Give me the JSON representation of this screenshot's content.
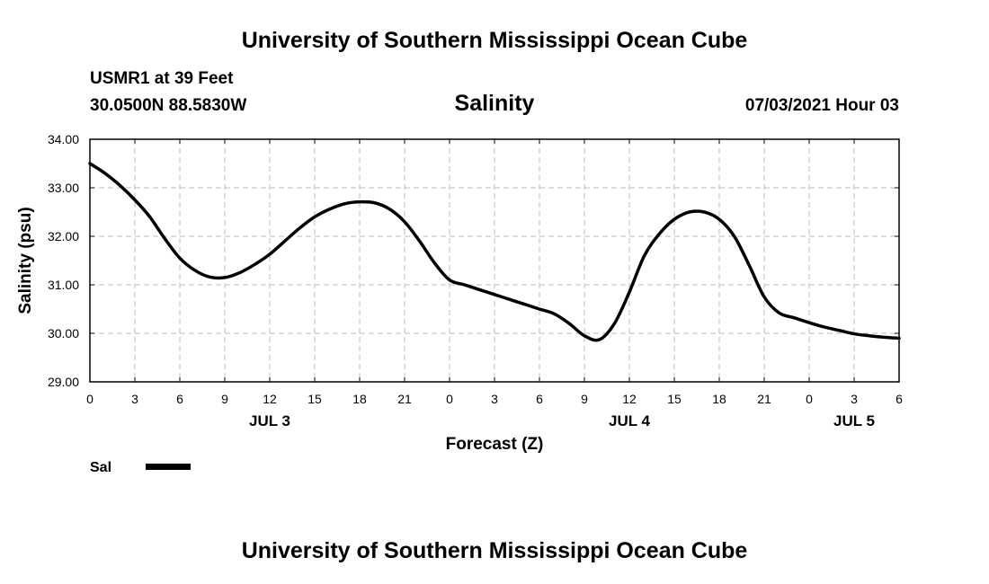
{
  "header": {
    "org_title": "University of Southern Mississippi Ocean Cube",
    "station": "USMR1 at 39 Feet",
    "coords": "30.0500N  88.5830W",
    "datetime": "07/03/2021 Hour 03"
  },
  "footer": {
    "org_title": "University of Southern Mississippi Ocean Cube"
  },
  "colors": {
    "line": "#000000",
    "grid": "#bbbbbb",
    "axis": "#000000"
  },
  "chart_data": {
    "type": "line",
    "title": "Salinity",
    "xlabel": "Forecast (Z)",
    "ylabel": "Salinity (psu)",
    "grid": true,
    "legend_position": "bottom-left",
    "xlim": [
      0,
      54
    ],
    "ylim": [
      29.0,
      34.0
    ],
    "y_ticks": [
      29.0,
      30.0,
      31.0,
      32.0,
      33.0,
      34.0
    ],
    "y_tick_labels": [
      "29.00",
      "30.00",
      "31.00",
      "32.00",
      "33.00",
      "34.00"
    ],
    "x_ticks": [
      0,
      3,
      6,
      9,
      12,
      15,
      18,
      21,
      24,
      27,
      30,
      33,
      36,
      39,
      42,
      45,
      48,
      51,
      54
    ],
    "x_tick_labels": [
      "0",
      "3",
      "6",
      "9",
      "12",
      "15",
      "18",
      "21",
      "0",
      "3",
      "6",
      "9",
      "12",
      "15",
      "18",
      "21",
      "0",
      "3",
      "6"
    ],
    "date_labels": [
      {
        "x": 12,
        "label": "JUL 3"
      },
      {
        "x": 36,
        "label": "JUL 4"
      },
      {
        "x": 51,
        "label": "JUL 5"
      }
    ],
    "series": [
      {
        "name": "Sal",
        "x": [
          0,
          1,
          2,
          3,
          4,
          5,
          6,
          7,
          8,
          9,
          10,
          11,
          12,
          13,
          14,
          15,
          16,
          17,
          18,
          19,
          20,
          21,
          22,
          23,
          24,
          25,
          26,
          27,
          28,
          29,
          30,
          31,
          32,
          33,
          34,
          35,
          36,
          37,
          38,
          39,
          40,
          41,
          42,
          43,
          44,
          45,
          46,
          47,
          48,
          49,
          50,
          51,
          52,
          53,
          54
        ],
        "values": [
          33.5,
          33.3,
          33.05,
          32.75,
          32.4,
          31.95,
          31.55,
          31.3,
          31.16,
          31.15,
          31.25,
          31.42,
          31.63,
          31.9,
          32.17,
          32.4,
          32.56,
          32.67,
          32.71,
          32.69,
          32.56,
          32.3,
          31.9,
          31.45,
          31.1,
          31.0,
          30.9,
          30.8,
          30.7,
          30.6,
          30.5,
          30.4,
          30.2,
          29.95,
          29.87,
          30.2,
          30.85,
          31.6,
          32.05,
          32.35,
          32.5,
          32.5,
          32.35,
          32.0,
          31.4,
          30.75,
          30.42,
          30.32,
          30.22,
          30.13,
          30.06,
          29.99,
          29.95,
          29.92,
          29.9
        ]
      }
    ]
  }
}
